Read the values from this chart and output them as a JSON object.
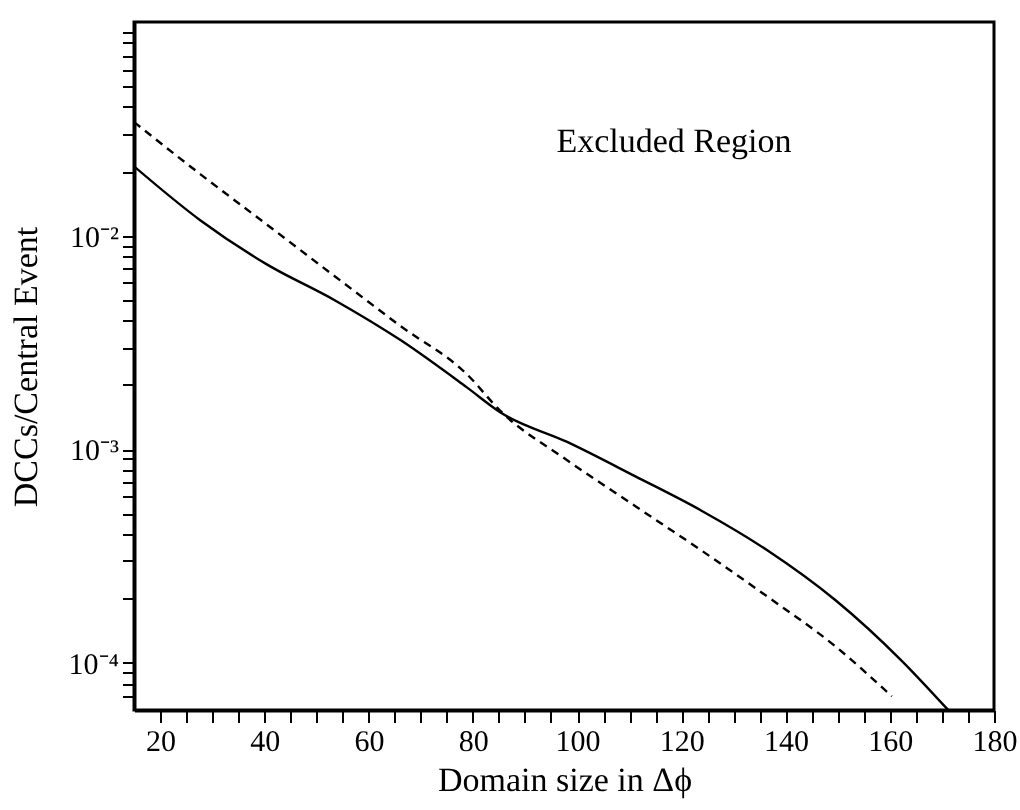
{
  "chart_data": {
    "type": "line",
    "xlabel": "Domain size in Δϕ",
    "ylabel": "DCCs/Central Event",
    "annotations": [
      "Excluded Region"
    ],
    "log": "y",
    "grid": false,
    "marker": "none",
    "xlim": [
      15,
      180
    ],
    "ylim": [
      6e-05,
      0.1
    ],
    "xticks": [
      20,
      {
        "value": 25,
        "label": null
      },
      {
        "value": 30,
        "label": null
      },
      {
        "value": 35,
        "label": null
      },
      40,
      {
        "value": 45,
        "label": null
      },
      {
        "value": 50,
        "label": null
      },
      {
        "value": 55,
        "label": null
      },
      60,
      {
        "value": 65,
        "label": null
      },
      {
        "value": 70,
        "label": null
      },
      {
        "value": 75,
        "label": null
      },
      80,
      {
        "value": 85,
        "label": null
      },
      {
        "value": 90,
        "label": null
      },
      {
        "value": 95,
        "label": null
      },
      100,
      {
        "value": 105,
        "label": null
      },
      {
        "value": 110,
        "label": null
      },
      {
        "value": 115,
        "label": null
      },
      120,
      {
        "value": 125,
        "label": null
      },
      {
        "value": 130,
        "label": null
      },
      {
        "value": 135,
        "label": null
      },
      140,
      {
        "value": 145,
        "label": null
      },
      {
        "value": 150,
        "label": null
      },
      {
        "value": 155,
        "label": null
      },
      160,
      {
        "value": 165,
        "label": null
      },
      {
        "value": 170,
        "label": null
      },
      {
        "value": 175,
        "label": null
      },
      180
    ],
    "yticks": [
      {
        "value": 7e-05,
        "label": null
      },
      {
        "value": 8e-05,
        "label": null
      },
      {
        "value": 9e-05,
        "label": null
      },
      {
        "value": 0.0001,
        "label": "10⁻⁴"
      },
      {
        "value": 0.0002,
        "label": null
      },
      {
        "value": 0.0003,
        "label": null
      },
      {
        "value": 0.0004,
        "label": null
      },
      {
        "value": 0.0005,
        "label": null
      },
      {
        "value": 0.0006,
        "label": null
      },
      {
        "value": 0.0007,
        "label": null
      },
      {
        "value": 0.0008,
        "label": null
      },
      {
        "value": 0.0009,
        "label": null
      },
      {
        "value": 0.001,
        "label": "10⁻³"
      },
      {
        "value": 0.002,
        "label": null
      },
      {
        "value": 0.003,
        "label": null
      },
      {
        "value": 0.004,
        "label": null
      },
      {
        "value": 0.005,
        "label": null
      },
      {
        "value": 0.006,
        "label": null
      },
      {
        "value": 0.007,
        "label": null
      },
      {
        "value": 0.008,
        "label": null
      },
      {
        "value": 0.009,
        "label": null
      },
      {
        "value": 0.01,
        "label": "10⁻²"
      },
      {
        "value": 0.02,
        "label": null
      },
      {
        "value": 0.03,
        "label": null
      },
      {
        "value": 0.04,
        "label": null
      },
      {
        "value": 0.05,
        "label": null
      },
      {
        "value": 0.06,
        "label": null
      },
      {
        "value": 0.07,
        "label": null
      },
      {
        "value": 0.08,
        "label": null
      },
      {
        "value": 0.09,
        "label": null
      }
    ],
    "series": [
      {
        "color": "#000000",
        "line_style": "solid",
        "x": [
          15,
          27.7,
          40.4,
          53.5,
          66.2,
          78.8,
          85.4,
          98.1,
          111.2,
          123.8,
          136.5,
          149.6,
          162.3,
          171.2
        ],
        "values": [
          0.0211,
          0.0118,
          0.00735,
          0.00498,
          0.00323,
          0.00195,
          0.00148,
          0.00108,
          0.000745,
          0.000516,
          0.000336,
          0.000196,
          0.000102,
          6e-05
        ]
      },
      {
        "color": "#000000",
        "line_style": "dashed",
        "x": [
          15,
          27.7,
          40.4,
          53.5,
          66.2,
          78.8,
          85.4,
          98.1,
          111.2,
          123.8,
          136.5,
          149.6,
          160.4
        ],
        "values": [
          0.034,
          0.0194,
          0.0113,
          0.00645,
          0.00376,
          0.00225,
          0.0015,
          0.000887,
          0.00054,
          0.000336,
          0.000204,
          0.000119,
          6.95e-05
        ]
      }
    ]
  }
}
